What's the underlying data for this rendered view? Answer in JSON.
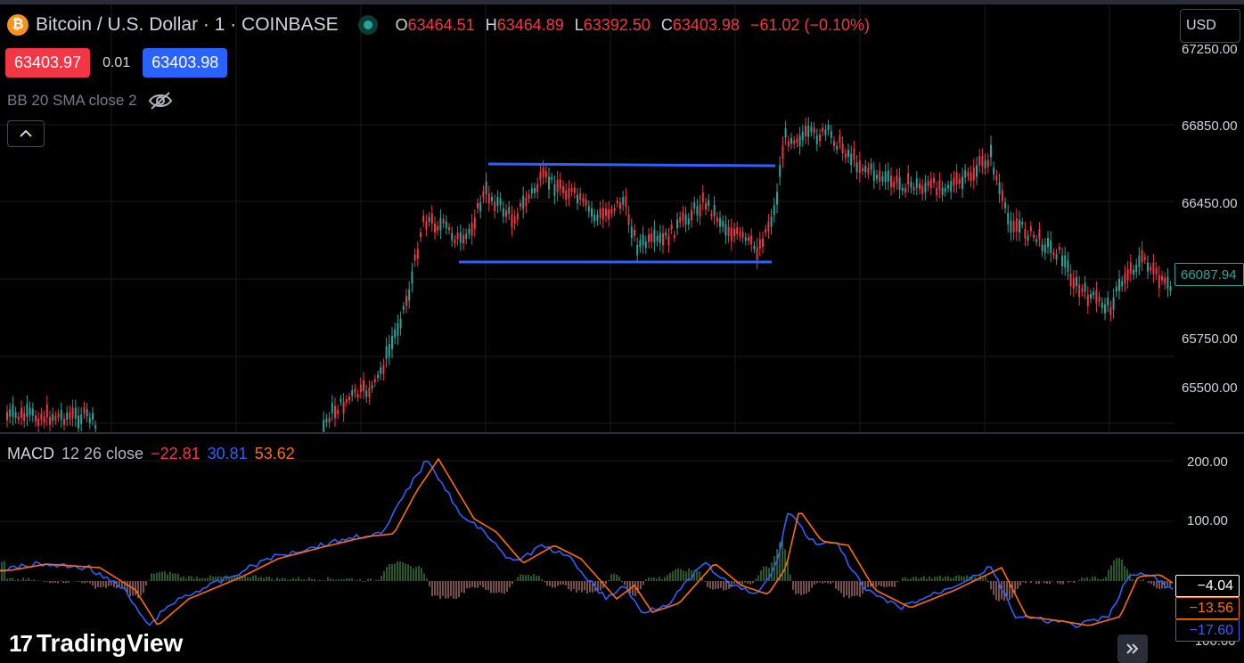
{
  "header": {
    "symbol_icon": "bitcoin-icon",
    "symbol_icon_glyph": "₿",
    "symbol_title": "Bitcoin / U.S. Dollar · 1 · COINBASE",
    "ohlc": {
      "open_key": "O",
      "open": "63464.51",
      "high_key": "H",
      "high": "63464.89",
      "low_key": "L",
      "low": "63392.50",
      "close_key": "C",
      "close": "63403.98",
      "change": "−61.02 (−0.10%)"
    },
    "bid": "63403.97",
    "spread": "0.01",
    "ask": "63403.98"
  },
  "indicator_bb": {
    "label": "BB 20 SMA close 2",
    "visibility_icon": "eye-off-icon"
  },
  "collapse_icon": "chevron-up-icon",
  "currency_button": "USD",
  "price_axis": {
    "ticks": [
      "67250.00",
      "66850.00",
      "66450.00",
      "65750.00",
      "65500.00"
    ],
    "current_price_tag": "66087.94"
  },
  "macd": {
    "label": "MACD",
    "params": "12 26 close",
    "histogram": "−22.81",
    "macd_line": "30.81",
    "signal_line": "53.62",
    "axis_ticks": [
      "200.00",
      "100.00",
      "−100.00"
    ],
    "tags": {
      "white": "−4.04",
      "orange": "−13.56",
      "blue": "−17.60"
    }
  },
  "branding": {
    "logo_mark": "17",
    "logo_text": "TradingView"
  },
  "scroll_icon": "double-chevron-right-icon",
  "colors": {
    "up": "#26a69a",
    "down": "#f23645",
    "macd": "#2962ff",
    "signal": "#ff6d00",
    "range_lines": "#2962ff",
    "grid": "#1a1a1a"
  }
}
